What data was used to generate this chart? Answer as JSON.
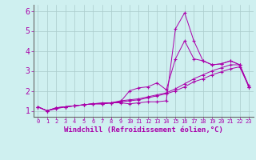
{
  "xlabel": "Windchill (Refroidissement éolien,°C)",
  "bg_color": "#cff0f0",
  "grid_color": "#aacccc",
  "line_color": "#aa00aa",
  "x_ticks": [
    0,
    1,
    2,
    3,
    4,
    5,
    6,
    7,
    8,
    9,
    10,
    11,
    12,
    13,
    14,
    15,
    16,
    17,
    18,
    19,
    20,
    21,
    22,
    23
  ],
  "y_ticks": [
    1,
    2,
    3,
    4,
    5,
    6
  ],
  "xlim": [
    -0.5,
    23.5
  ],
  "ylim": [
    0.7,
    6.3
  ],
  "series": [
    [
      1.2,
      1.0,
      1.1,
      1.2,
      1.25,
      1.3,
      1.35,
      1.4,
      1.4,
      1.4,
      1.35,
      1.4,
      1.45,
      1.45,
      1.5,
      5.1,
      5.9,
      4.5,
      3.5,
      3.3,
      3.35,
      3.5,
      3.3,
      2.2
    ],
    [
      1.2,
      1.0,
      1.15,
      1.2,
      1.25,
      1.3,
      1.35,
      1.35,
      1.4,
      1.45,
      2.0,
      2.15,
      2.2,
      2.4,
      2.05,
      3.6,
      4.5,
      3.6,
      3.5,
      3.3,
      3.35,
      3.5,
      3.3,
      2.2
    ],
    [
      1.2,
      1.0,
      1.15,
      1.2,
      1.25,
      1.3,
      1.35,
      1.35,
      1.4,
      1.5,
      1.55,
      1.6,
      1.7,
      1.8,
      1.9,
      2.1,
      2.35,
      2.6,
      2.8,
      3.0,
      3.15,
      3.3,
      3.3,
      2.25
    ],
    [
      1.2,
      1.0,
      1.15,
      1.2,
      1.25,
      1.3,
      1.35,
      1.35,
      1.4,
      1.45,
      1.5,
      1.55,
      1.65,
      1.75,
      1.85,
      2.0,
      2.2,
      2.45,
      2.6,
      2.8,
      2.95,
      3.1,
      3.2,
      2.2
    ]
  ]
}
